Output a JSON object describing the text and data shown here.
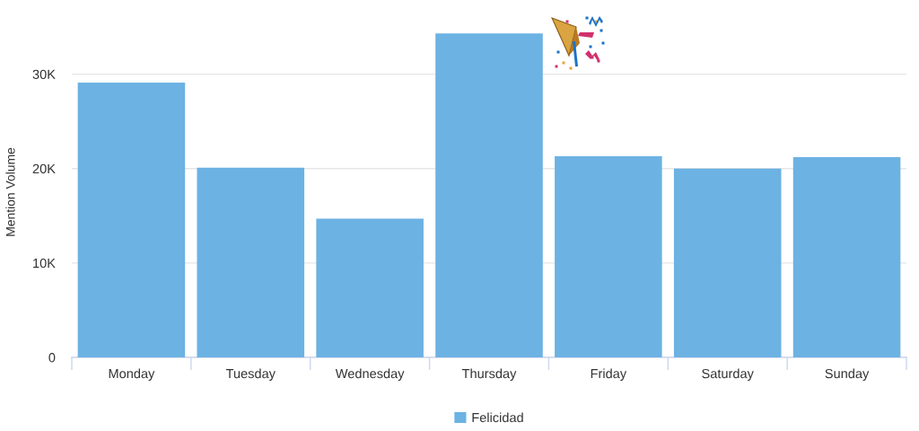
{
  "chart_data": {
    "type": "bar",
    "categories": [
      "Monday",
      "Tuesday",
      "Wednesday",
      "Thursday",
      "Friday",
      "Saturday",
      "Sunday"
    ],
    "series": [
      {
        "name": "Felicidad",
        "color": "#6cb2e3",
        "values": [
          29100,
          20100,
          14700,
          34300,
          21300,
          20000,
          21200
        ]
      }
    ],
    "ylabel": "Mention Volume",
    "ylim": [
      0,
      35000
    ],
    "yticks": [
      0,
      {
        "value": 10000,
        "label": "10K"
      },
      {
        "value": 20000,
        "label": "20K"
      },
      {
        "value": 30000,
        "label": "30K"
      }
    ],
    "grid": "y",
    "legend": "bottom"
  }
}
